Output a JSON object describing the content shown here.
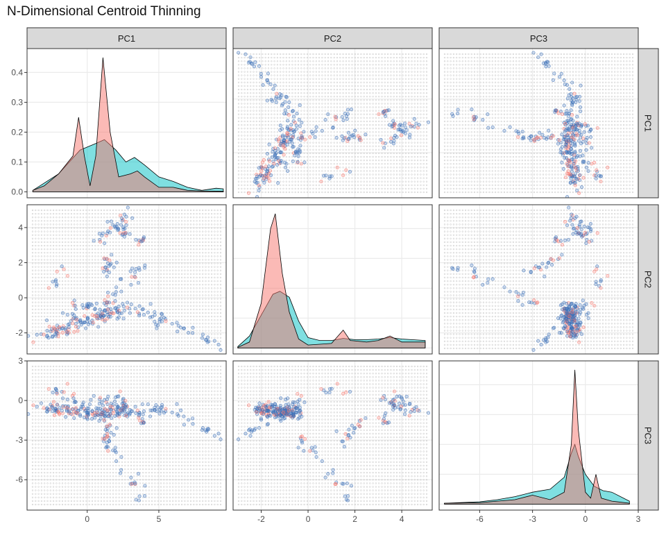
{
  "title": "N-Dimensional Centroid Thinning",
  "colors": {
    "strip_fill": "#d9d9d9",
    "grid": "#ebebeb",
    "panel_border": "#333333",
    "density_group1": "#f8766d",
    "density_group2": "#00bfc4",
    "point_group1": "#f8766d",
    "point_group2": "#3b6fb6",
    "grid_points": "#b5b5b5"
  },
  "chart_data": {
    "type": "scatter-matrix",
    "title": "N-Dimensional Centroid Thinning",
    "variables": [
      "PC1",
      "PC2",
      "PC3"
    ],
    "axes": {
      "PC1": {
        "range": [
          -4.2,
          9.7
        ],
        "ticks": [
          0,
          5
        ],
        "tick_labels": [
          "0",
          "5"
        ]
      },
      "PC2": {
        "range": [
          -3.2,
          5.3
        ],
        "ticks": [
          -2,
          0,
          2,
          4
        ],
        "tick_labels": [
          "-2",
          "0",
          "2",
          "4"
        ]
      },
      "PC3": {
        "range": [
          -8.3,
          3.0
        ],
        "ticks": [
          -6,
          -3,
          0,
          3
        ],
        "tick_labels": [
          "-6",
          "-3",
          "0",
          "3"
        ]
      }
    },
    "diag_density_axis": {
      "range": [
        -0.02,
        0.48
      ],
      "ticks": [
        0,
        0.1,
        0.2,
        0.3,
        0.4
      ],
      "tick_labels": [
        "0.0",
        "0.1",
        "0.2",
        "0.3",
        "0.4"
      ]
    },
    "densities": {
      "PC1": {
        "group1": [
          [
            -3.8,
            0.005
          ],
          [
            -3,
            0.02
          ],
          [
            -2,
            0.06
          ],
          [
            -1,
            0.12
          ],
          [
            -0.6,
            0.25
          ],
          [
            -0.2,
            0.12
          ],
          [
            0.2,
            0.02
          ],
          [
            0.6,
            0.12
          ],
          [
            1.1,
            0.45
          ],
          [
            1.6,
            0.2
          ],
          [
            2.2,
            0.05
          ],
          [
            3,
            0.06
          ],
          [
            3.5,
            0.07
          ],
          [
            4,
            0.05
          ],
          [
            5,
            0.015
          ],
          [
            6,
            0.015
          ],
          [
            7,
            0.005
          ],
          [
            8,
            0.003
          ],
          [
            9.5,
            0.002
          ]
        ],
        "group2": [
          [
            -3.8,
            0.005
          ],
          [
            -2,
            0.06
          ],
          [
            -0.5,
            0.14
          ],
          [
            0.5,
            0.16
          ],
          [
            1.2,
            0.175
          ],
          [
            2,
            0.14
          ],
          [
            2.7,
            0.1
          ],
          [
            3.3,
            0.115
          ],
          [
            4,
            0.09
          ],
          [
            5,
            0.05
          ],
          [
            6,
            0.035
          ],
          [
            7,
            0.015
          ],
          [
            8,
            0.005
          ],
          [
            9,
            0.012
          ],
          [
            9.5,
            0.01
          ]
        ]
      },
      "PC2": {
        "group1": [
          [
            -3,
            0.002
          ],
          [
            -2.5,
            0.02
          ],
          [
            -2,
            0.15
          ],
          [
            -1.6,
            0.4
          ],
          [
            -1.4,
            0.45
          ],
          [
            -1.1,
            0.25
          ],
          [
            -0.8,
            0.12
          ],
          [
            -0.4,
            0.03
          ],
          [
            0,
            0.01
          ],
          [
            1,
            0.015
          ],
          [
            1.5,
            0.06
          ],
          [
            1.8,
            0.025
          ],
          [
            2.5,
            0.02
          ],
          [
            3,
            0.025
          ],
          [
            3.5,
            0.04
          ],
          [
            4,
            0.02
          ],
          [
            5,
            0.02
          ]
        ],
        "group2": [
          [
            -3,
            0.005
          ],
          [
            -2.5,
            0.04
          ],
          [
            -2,
            0.11
          ],
          [
            -1.5,
            0.18
          ],
          [
            -1.2,
            0.19
          ],
          [
            -0.8,
            0.17
          ],
          [
            -0.4,
            0.09
          ],
          [
            0,
            0.035
          ],
          [
            0.5,
            0.025
          ],
          [
            1,
            0.025
          ],
          [
            1.5,
            0.032
          ],
          [
            2,
            0.028
          ],
          [
            2.5,
            0.028
          ],
          [
            3,
            0.03
          ],
          [
            3.5,
            0.035
          ],
          [
            4,
            0.03
          ],
          [
            5,
            0.025
          ]
        ]
      },
      "PC3": {
        "group1": [
          [
            -8,
            0.003
          ],
          [
            -6,
            0.005
          ],
          [
            -5,
            0.01
          ],
          [
            -4,
            0.015
          ],
          [
            -3,
            0.03
          ],
          [
            -2,
            0.015
          ],
          [
            -1.2,
            0.04
          ],
          [
            -0.8,
            0.2
          ],
          [
            -0.6,
            0.45
          ],
          [
            -0.4,
            0.25
          ],
          [
            0,
            0.04
          ],
          [
            0.3,
            0.02
          ],
          [
            0.6,
            0.1
          ],
          [
            0.9,
            0.02
          ],
          [
            1.5,
            0.01
          ],
          [
            2.5,
            0.003
          ]
        ],
        "group2": [
          [
            -8,
            0.003
          ],
          [
            -6,
            0.008
          ],
          [
            -5,
            0.015
          ],
          [
            -4,
            0.025
          ],
          [
            -3,
            0.04
          ],
          [
            -2,
            0.05
          ],
          [
            -1.2,
            0.09
          ],
          [
            -0.8,
            0.17
          ],
          [
            -0.6,
            0.2
          ],
          [
            -0.4,
            0.16
          ],
          [
            0,
            0.1
          ],
          [
            0.5,
            0.06
          ],
          [
            1,
            0.045
          ],
          [
            1.5,
            0.04
          ],
          [
            2.5,
            0.01
          ]
        ]
      }
    },
    "point_clusters": [
      {
        "from": [
          -3.5,
          -2.4,
          -0.5
        ],
        "to": [
          0.0,
          -1.2,
          -0.9
        ],
        "n": 70,
        "spread": 0.25
      },
      {
        "from": [
          0.0,
          -1.2,
          -0.9
        ],
        "to": [
          3.0,
          -0.6,
          -0.9
        ],
        "n": 70,
        "spread": 0.25
      },
      {
        "from": [
          3.0,
          -0.6,
          -0.9
        ],
        "to": [
          6.0,
          -1.5,
          -0.6
        ],
        "n": 30,
        "spread": 0.25
      },
      {
        "from": [
          6.0,
          -1.5,
          -0.6
        ],
        "to": [
          9.3,
          -2.8,
          -2.8
        ],
        "n": 18,
        "spread": 0.2
      },
      {
        "from": [
          0.5,
          3.0,
          0.2
        ],
        "to": [
          3.2,
          5.0,
          -1.0
        ],
        "n": 30,
        "spread": 0.2
      },
      {
        "from": [
          2.0,
          4.0,
          0.3
        ],
        "to": [
          4.0,
          3.2,
          -1.8
        ],
        "n": 25,
        "spread": 0.2
      },
      {
        "from": [
          1.3,
          1.3,
          -3.5
        ],
        "to": [
          1.6,
          2.3,
          -1.5
        ],
        "n": 20,
        "spread": 0.2
      },
      {
        "from": [
          1.0,
          -0.6,
          -2.5
        ],
        "to": [
          4.0,
          2.0,
          -7.5
        ],
        "n": 30,
        "spread": 0.25
      },
      {
        "from": [
          -1.5,
          -0.5,
          0.8
        ],
        "to": [
          0.5,
          -0.7,
          -1.2
        ],
        "n": 22,
        "spread": 0.3
      },
      {
        "from": [
          -2.5,
          0.6,
          1.0
        ],
        "to": [
          -1.5,
          1.5,
          0.6
        ],
        "n": 10,
        "spread": 0.2
      }
    ],
    "grid_background": {
      "panel_columns": 64,
      "panel_rows": 40
    }
  }
}
